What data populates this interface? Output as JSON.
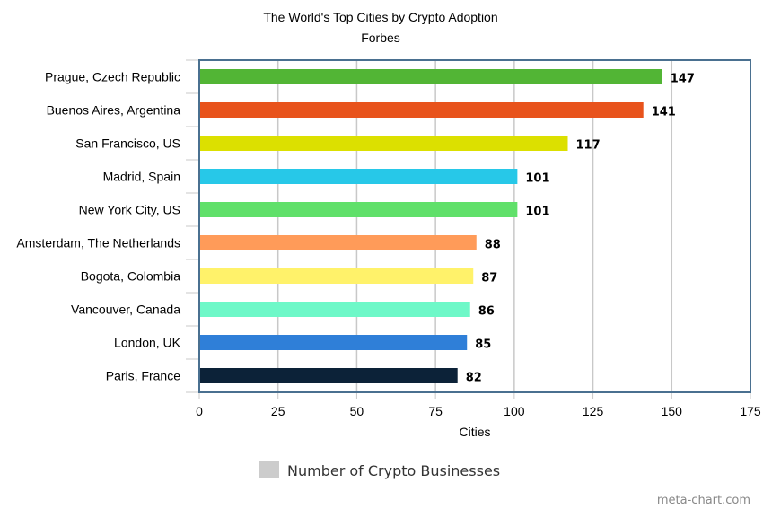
{
  "chart_data": {
    "type": "bar",
    "orientation": "horizontal",
    "title": "The World's Top Cities by Crypto Adoption",
    "subtitle": "Forbes",
    "xlabel": "Cities",
    "ylabel": "",
    "categories": [
      "Prague, Czech Republic",
      "Buenos Aires, Argentina",
      "San Francisco, US",
      "Madrid, Spain",
      "New York City, US",
      "Amsterdam, The Netherlands",
      "Bogota, Colombia",
      "Vancouver, Canada",
      "London, UK",
      "Paris, France"
    ],
    "series": [
      {
        "name": "Number of Crypto Businesses",
        "values": [
          147,
          141,
          117,
          101,
          101,
          88,
          87,
          86,
          85,
          82
        ]
      }
    ],
    "colors": [
      "#52b535",
      "#e8531c",
      "#dce000",
      "#27c8e8",
      "#60e06a",
      "#ff9b59",
      "#fff26a",
      "#6ef8c8",
      "#2f7fd8",
      "#0c2238"
    ],
    "xlim": [
      0,
      175
    ],
    "xticks": [
      0,
      25,
      50,
      75,
      100,
      125,
      150,
      175
    ],
    "grid": true,
    "legend_position": "bottom",
    "legend_color": "#cccccc",
    "frame_color": "#4a7090",
    "grid_color": "#c8c8c8"
  },
  "credit": "meta-chart.com"
}
